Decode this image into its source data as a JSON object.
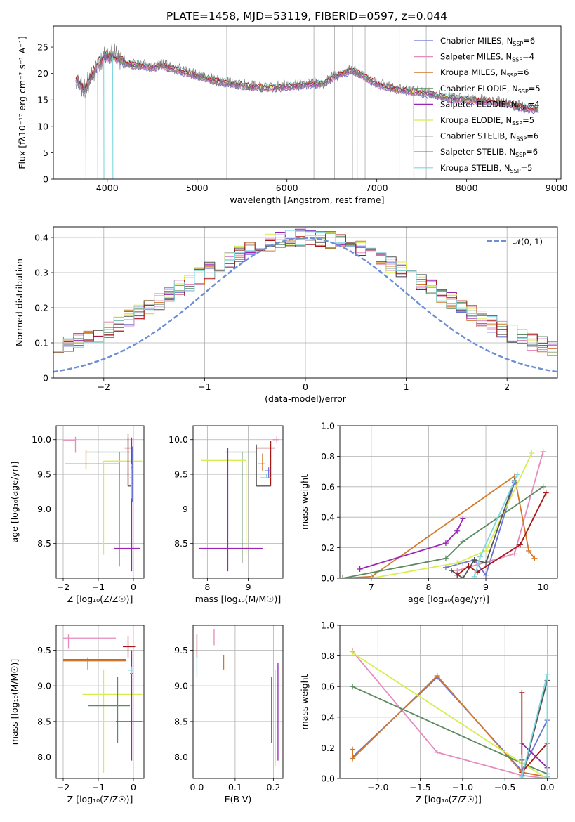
{
  "figure": {
    "title": "PLATE=1458, MJD=53119, FIBERID=0597, z=0.044"
  },
  "series": [
    {
      "name": "Chabrier MILES, N_SSP=6",
      "color": "#6b73d6"
    },
    {
      "name": "Salpeter MILES, N_SSP=4",
      "color": "#e58bbd"
    },
    {
      "name": "Kroupa MILES, N_SSP=6",
      "color": "#d2782a"
    },
    {
      "name": "Chabrier ELODIE, N_SSP=5",
      "color": "#5a8a60"
    },
    {
      "name": "Salpeter ELODIE, N_SSP=4",
      "color": "#9b24b5"
    },
    {
      "name": "Kroupa ELODIE, N_SSP=5",
      "color": "#d6ee4e"
    },
    {
      "name": "Chabrier STELIB, N_SSP=6",
      "color": "#555555"
    },
    {
      "name": "Salpeter STELIB, N_SSP=6",
      "color": "#a81616"
    },
    {
      "name": "Kroupa STELIB, N_SSP=5",
      "color": "#7fd8e0"
    }
  ],
  "chart_data": [
    {
      "id": "spectrum",
      "type": "line",
      "xlabel": "wavelength [Angstrom, rest frame]",
      "ylabel": "Flux [fλ10⁻¹⁷ erg cm⁻² s⁻¹ A⁻¹]",
      "xlim": [
        3400,
        9050
      ],
      "ylim": [
        0,
        29
      ],
      "xticks": [
        4000,
        5000,
        6000,
        7000,
        8000,
        9000
      ],
      "yticks": [
        0,
        5,
        10,
        15,
        20,
        25
      ],
      "continuum": {
        "x": [
          3650,
          3700,
          3750,
          3800,
          3900,
          4000,
          4100,
          4200,
          4300,
          4400,
          4500,
          4600,
          4800,
          5000,
          5200,
          5400,
          5600,
          5800,
          6000,
          6200,
          6400,
          6550,
          6700,
          6800,
          7000,
          7200,
          7400,
          7600,
          7800,
          8000,
          8200,
          8400,
          8600,
          8800
        ],
        "y": [
          19,
          18,
          17,
          18.5,
          22,
          23.5,
          23,
          22,
          21.5,
          21.5,
          21,
          21.5,
          20.5,
          19.5,
          18.5,
          18,
          17.5,
          17.2,
          17.4,
          17.8,
          18,
          19.5,
          20.5,
          20,
          18,
          17,
          16.5,
          16,
          15.3,
          15,
          14.7,
          14.3,
          13.6,
          13
        ]
      },
      "dropouts_x": [
        3760,
        3890,
        3960,
        4060,
        6780,
        7410
      ],
      "spikes_x": [
        5330,
        6300,
        6530,
        6730,
        6870,
        7250,
        7550
      ]
    },
    {
      "id": "residuals",
      "type": "histogram",
      "xlabel": "(data-model)/error",
      "ylabel": "Normed distribution",
      "xlim": [
        -2.5,
        2.5
      ],
      "ylim": [
        0,
        0.43
      ],
      "xticks": [
        -2,
        -1,
        0,
        1,
        2
      ],
      "yticks": [
        0.0,
        0.1,
        0.2,
        0.3,
        0.4
      ],
      "bin_width": 0.1,
      "reference_name": "𝒩(0, 1)",
      "reference_color": "#6b8fd6"
    },
    {
      "id": "age_vs_Z",
      "type": "errorbar",
      "xlabel": "Z [log₁₀(Z/Z☉)]",
      "ylabel": "age  [log₁₀(age/yr)]",
      "xlim": [
        -2.2,
        0.3
      ],
      "ylim": [
        8.0,
        10.2
      ],
      "xticks": [
        -2,
        -1,
        0
      ],
      "yticks": [
        8.5,
        9.0,
        9.5,
        10.0
      ],
      "points": [
        {
          "s": 1,
          "x": -1.65,
          "y": 9.99,
          "xerr": [
            0.35,
            0.0
          ],
          "yerr": [
            0.18,
            0.05
          ]
        },
        {
          "s": 2,
          "x": -1.35,
          "y": 9.65,
          "xerr": [
            0.6,
            0.95
          ],
          "yerr": [
            0.08,
            0.2
          ]
        },
        {
          "s": 3,
          "x": -0.4,
          "y": 9.82,
          "xerr": [
            0.95,
            0.3
          ],
          "yerr": [
            1.65,
            0.0
          ]
        },
        {
          "s": 5,
          "x": -0.85,
          "y": 9.69,
          "xerr": [
            0.0,
            1.1
          ],
          "yerr": [
            1.35,
            0.0
          ]
        },
        {
          "s": 4,
          "x": -0.05,
          "y": 8.43,
          "xerr": [
            0.5,
            0.25
          ],
          "yerr": [
            0.33,
            1.6
          ]
        },
        {
          "s": 6,
          "x": -0.15,
          "y": 9.33,
          "xerr": [
            0.0,
            0.15
          ],
          "yerr": [
            0.0,
            0.7
          ]
        },
        {
          "s": 7,
          "x": -0.15,
          "y": 9.88,
          "xerr": [
            0.1,
            0.15
          ],
          "yerr": [
            0.55,
            0.2
          ]
        },
        {
          "s": 8,
          "x": -0.05,
          "y": 9.45,
          "xerr": [
            0.05,
            0.05
          ],
          "yerr": [
            0.3,
            0.2
          ]
        },
        {
          "s": 0,
          "x": -0.03,
          "y": 9.6,
          "xerr": [
            0.05,
            0.02
          ],
          "yerr": [
            0.5,
            0.3
          ]
        }
      ]
    },
    {
      "id": "age_vs_mass",
      "type": "errorbar",
      "xlabel": "mass [log₁₀(M/M☉)]",
      "ylabel": "",
      "xlim": [
        7.65,
        9.85
      ],
      "ylim": [
        8.0,
        10.2
      ],
      "xticks": [
        8,
        9
      ],
      "yticks": [
        8.5,
        9.0,
        9.5,
        10.0
      ],
      "points": [
        {
          "s": 1,
          "x": 9.7,
          "y": 10.0,
          "xerr": [
            0.1,
            0.05
          ],
          "yerr": [
            0.05,
            0.05
          ]
        },
        {
          "s": 2,
          "x": 9.35,
          "y": 9.65,
          "xerr": [
            0.1,
            0.05
          ],
          "yerr": [
            0.1,
            0.15
          ]
        },
        {
          "s": 3,
          "x": 8.85,
          "y": 9.82,
          "xerr": [
            0.4,
            0.35
          ],
          "yerr": [
            1.6,
            0.0
          ]
        },
        {
          "s": 5,
          "x": 8.95,
          "y": 9.7,
          "xerr": [
            1.1,
            0.0
          ],
          "yerr": [
            1.35,
            0.0
          ]
        },
        {
          "s": 4,
          "x": 8.5,
          "y": 8.43,
          "xerr": [
            0.7,
            0.85
          ],
          "yerr": [
            0.33,
            1.45
          ]
        },
        {
          "s": 6,
          "x": 9.2,
          "y": 9.33,
          "xerr": [
            0.0,
            0.35
          ],
          "yerr": [
            0.0,
            0.6
          ]
        },
        {
          "s": 7,
          "x": 9.55,
          "y": 9.88,
          "xerr": [
            0.35,
            0.1
          ],
          "yerr": [
            0.55,
            0.1
          ]
        },
        {
          "s": 8,
          "x": 9.45,
          "y": 9.45,
          "xerr": [
            0.15,
            0.1
          ],
          "yerr": [
            0.0,
            0.05
          ]
        },
        {
          "s": 0,
          "x": 9.5,
          "y": 9.55,
          "xerr": [
            0.1,
            0.05
          ],
          "yerr": [
            0.1,
            0.05
          ]
        }
      ]
    },
    {
      "id": "weight_vs_age",
      "type": "line",
      "xlabel": "age  [log₁₀(age/yr)]",
      "ylabel": "mass weight",
      "xlim": [
        6.45,
        10.25
      ],
      "ylim": [
        0,
        1.0
      ],
      "xticks": [
        7,
        8,
        9,
        10
      ],
      "yticks": [
        0.0,
        0.2,
        0.4,
        0.6,
        0.8,
        1.0
      ],
      "lines": [
        {
          "s": 0,
          "pts": [
            [
              8.3,
              0.07
            ],
            [
              8.6,
              0.1
            ],
            [
              8.8,
              0.12
            ],
            [
              9.0,
              0.02
            ],
            [
              9.5,
              0.63
            ]
          ]
        },
        {
          "s": 1,
          "pts": [
            [
              8.5,
              0.05
            ],
            [
              9.5,
              0.16
            ],
            [
              10.0,
              0.83
            ]
          ]
        },
        {
          "s": 2,
          "pts": [
            [
              6.5,
              0.0
            ],
            [
              7.0,
              0.01
            ],
            [
              9.5,
              0.67
            ],
            [
              9.75,
              0.18
            ],
            [
              9.85,
              0.13
            ]
          ]
        },
        {
          "s": 3,
          "pts": [
            [
              6.5,
              0.0
            ],
            [
              8.3,
              0.13
            ],
            [
              8.6,
              0.24
            ],
            [
              10.0,
              0.6
            ]
          ]
        },
        {
          "s": 4,
          "pts": [
            [
              6.8,
              0.06
            ],
            [
              8.3,
              0.23
            ],
            [
              8.5,
              0.31
            ],
            [
              8.6,
              0.39
            ]
          ]
        },
        {
          "s": 5,
          "pts": [
            [
              7.0,
              0.0
            ],
            [
              8.5,
              0.1
            ],
            [
              9.0,
              0.18
            ],
            [
              9.8,
              0.82
            ]
          ]
        },
        {
          "s": 6,
          "pts": [
            [
              8.4,
              0.05
            ],
            [
              8.6,
              0.0
            ],
            [
              8.8,
              0.12
            ],
            [
              9.0,
              0.1
            ],
            [
              9.5,
              0.64
            ]
          ]
        },
        {
          "s": 7,
          "pts": [
            [
              8.5,
              0.02
            ],
            [
              8.7,
              0.08
            ],
            [
              8.85,
              0.04
            ],
            [
              9.6,
              0.22
            ],
            [
              10.05,
              0.56
            ]
          ]
        },
        {
          "s": 8,
          "pts": [
            [
              8.8,
              0.01
            ],
            [
              8.9,
              0.14
            ],
            [
              9.55,
              0.68
            ]
          ]
        }
      ]
    },
    {
      "id": "mass_vs_Z",
      "type": "errorbar",
      "xlabel": "Z [log₁₀(Z/Z☉)]",
      "ylabel": "mass [log₁₀(M/M☉)]",
      "xlim": [
        -2.2,
        0.3
      ],
      "ylim": [
        7.7,
        9.85
      ],
      "xticks": [
        -2,
        -1,
        0
      ],
      "yticks": [
        8.0,
        8.5,
        9.0,
        9.5
      ],
      "points": [
        {
          "s": 1,
          "x": -1.85,
          "y": 9.67,
          "xerr": [
            0.15,
            1.35
          ],
          "yerr": [
            0.15,
            0.05
          ]
        },
        {
          "s": 2,
          "x": -1.3,
          "y": 9.35,
          "xerr": [
            0.7,
            1.1
          ],
          "yerr": [
            0.12,
            0.05
          ]
        },
        {
          "s": 0,
          "x": -1.3,
          "y": 9.37,
          "xerr": [
            0.7,
            1.1
          ],
          "yerr": [
            0.0,
            0.0
          ]
        },
        {
          "s": 5,
          "x": -0.85,
          "y": 8.88,
          "xerr": [
            0.6,
            1.1
          ],
          "yerr": [
            1.1,
            0.35
          ]
        },
        {
          "s": 3,
          "x": -0.45,
          "y": 8.72,
          "xerr": [
            0.85,
            0.35
          ],
          "yerr": [
            0.52,
            0.4
          ]
        },
        {
          "s": 4,
          "x": -0.05,
          "y": 8.5,
          "xerr": [
            0.45,
            0.3
          ],
          "yerr": [
            0.55,
            1.0
          ]
        },
        {
          "s": 7,
          "x": -0.15,
          "y": 9.55,
          "xerr": [
            0.15,
            0.2
          ],
          "yerr": [
            0.15,
            0.15
          ]
        },
        {
          "s": 6,
          "x": -0.1,
          "y": 9.17,
          "xerr": [
            0.0,
            0.1
          ],
          "yerr": [
            0.0,
            0.0
          ]
        },
        {
          "s": 8,
          "x": -0.05,
          "y": 9.22,
          "xerr": [
            0.1,
            0.05
          ],
          "yerr": [
            0.05,
            0.05
          ]
        }
      ]
    },
    {
      "id": "mass_vs_EBV",
      "type": "errorbar",
      "xlabel": "E(B-V)",
      "ylabel": "",
      "xlim": [
        -0.01,
        0.225
      ],
      "ylim": [
        7.7,
        9.85
      ],
      "xticks": [
        0.0,
        0.1,
        0.2
      ],
      "yticks": [
        8.0,
        8.5,
        9.0,
        9.5
      ],
      "points": [
        {
          "s": 7,
          "x": 0.0,
          "y": 9.55,
          "xerr": [
            0,
            0
          ],
          "yerr": [
            0.15,
            0.17
          ]
        },
        {
          "s": 8,
          "x": 0.0,
          "y": 9.22,
          "xerr": [
            0,
            0
          ],
          "yerr": [
            0.1,
            0.2
          ]
        },
        {
          "s": 1,
          "x": 0.045,
          "y": 9.67,
          "xerr": [
            0,
            0
          ],
          "yerr": [
            0.1,
            0.12
          ]
        },
        {
          "s": 2,
          "x": 0.07,
          "y": 9.35,
          "xerr": [
            0,
            0
          ],
          "yerr": [
            0.12,
            0.08
          ]
        },
        {
          "s": 3,
          "x": 0.195,
          "y": 8.72,
          "xerr": [
            0,
            0
          ],
          "yerr": [
            0.52,
            0.4
          ]
        },
        {
          "s": 5,
          "x": 0.205,
          "y": 8.88,
          "xerr": [
            0,
            0
          ],
          "yerr": [
            1.0,
            0.35
          ]
        },
        {
          "s": 4,
          "x": 0.212,
          "y": 8.5,
          "xerr": [
            0,
            0
          ],
          "yerr": [
            0.55,
            0.82
          ]
        }
      ]
    },
    {
      "id": "weight_vs_Z",
      "type": "line",
      "xlabel": "Z [log₁₀(Z/Z☉)]",
      "ylabel": "mass weight",
      "xlim": [
        -2.45,
        0.12
      ],
      "ylim": [
        0,
        1.0
      ],
      "xticks": [
        -2.0,
        -1.5,
        -1.0,
        -0.5,
        0.0
      ],
      "yticks": [
        0.0,
        0.2,
        0.4,
        0.6,
        0.8,
        1.0
      ],
      "lines": [
        {
          "s": 0,
          "pts": [
            [
              -2.3,
              0.14
            ],
            [
              -1.3,
              0.66
            ],
            [
              -0.3,
              0.05
            ],
            [
              0.0,
              0.38
            ]
          ]
        },
        {
          "s": 1,
          "pts": [
            [
              -2.3,
              0.83
            ],
            [
              -1.3,
              0.17
            ],
            [
              -0.3,
              0.02
            ],
            [
              0.0,
              0.0
            ]
          ]
        },
        {
          "s": 2,
          "pts": [
            [
              -2.3,
              0.19
            ],
            [
              -2.3,
              0.13
            ],
            [
              -1.3,
              0.67
            ],
            [
              -0.3,
              0.04
            ],
            [
              0.0,
              0.01
            ]
          ]
        },
        {
          "s": 3,
          "pts": [
            [
              -2.3,
              0.6
            ],
            [
              -0.3,
              0.1
            ],
            [
              0.0,
              0.03
            ]
          ]
        },
        {
          "s": 4,
          "pts": [
            [
              -0.3,
              0.23
            ],
            [
              0.0,
              0.07
            ]
          ]
        },
        {
          "s": 5,
          "pts": [
            [
              -2.3,
              0.82
            ],
            [
              -0.3,
              0.1
            ],
            [
              0.0,
              0.0
            ]
          ]
        },
        {
          "s": 6,
          "pts": [
            [
              -0.3,
              0.12
            ],
            [
              -0.3,
              0.0
            ],
            [
              0.0,
              0.64
            ]
          ]
        },
        {
          "s": 7,
          "pts": [
            [
              -0.3,
              0.56
            ],
            [
              -0.3,
              0.04
            ],
            [
              0.0,
              0.23
            ],
            [
              0.0,
              0.0
            ]
          ]
        },
        {
          "s": 8,
          "pts": [
            [
              -0.3,
              0.14
            ],
            [
              -0.3,
              0.01
            ],
            [
              0.0,
              0.68
            ],
            [
              0.0,
              0.01
            ]
          ]
        }
      ]
    }
  ]
}
